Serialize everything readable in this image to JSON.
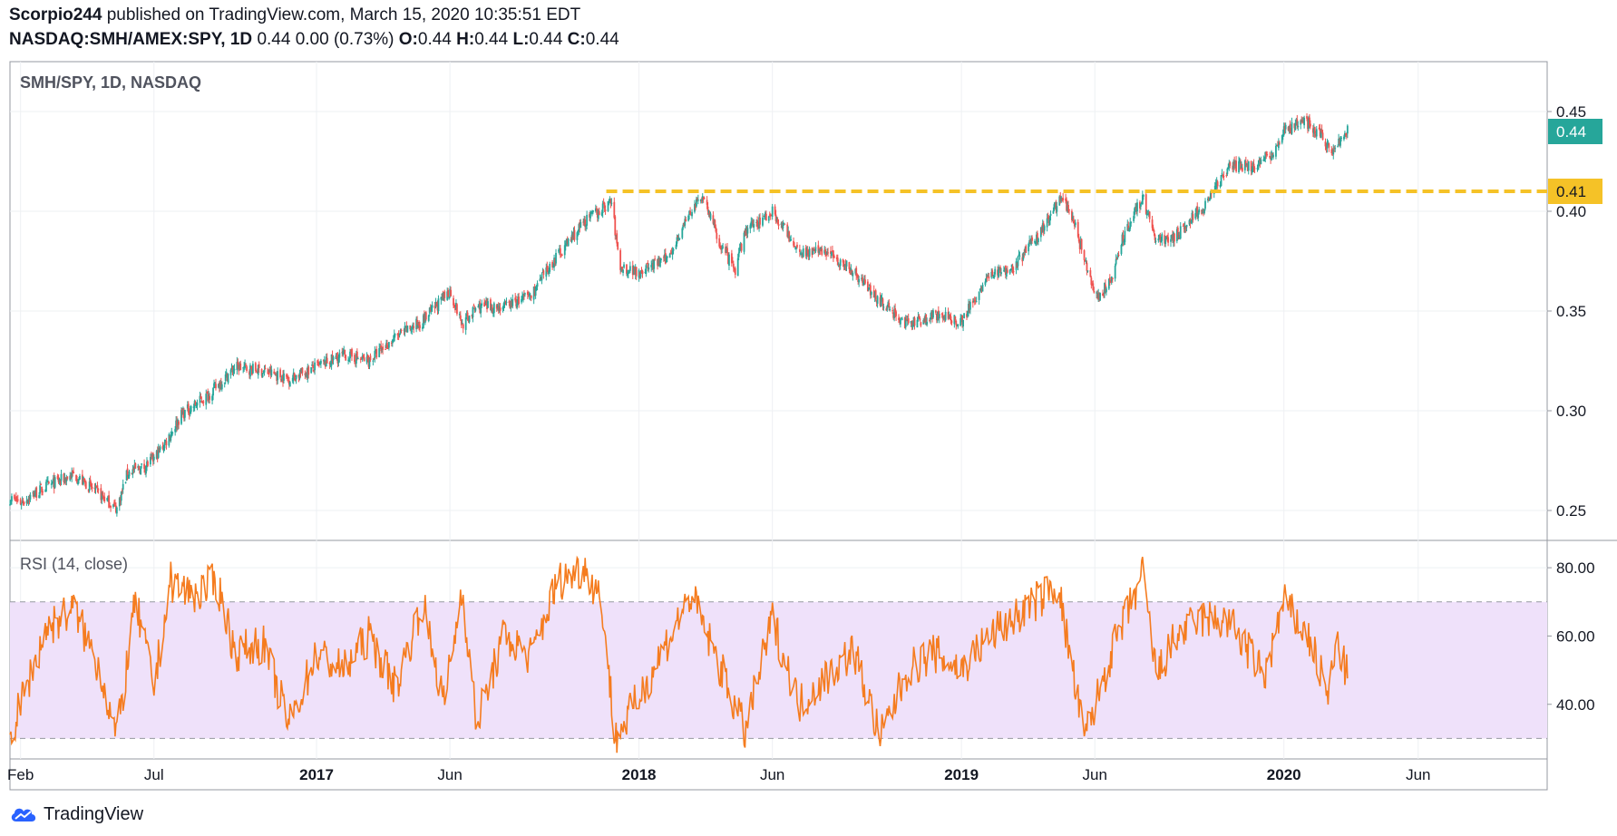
{
  "header": {
    "author": "Scorpio244",
    "published_text": " published on TradingView.com, March 15, 2020 10:35:51 EDT",
    "symbol_bold": "NASDAQ:SMH/AMEX:SPY, 1D",
    "price_rest": "0.44 0.00 (0.73%)",
    "o_label": "O:",
    "o_value": "0.44",
    "h_label": "H:",
    "h_value": "0.44",
    "l_label": "L:",
    "l_value": "0.44",
    "c_label": "C:",
    "c_value": "0.44"
  },
  "footer": {
    "brand": "TradingView"
  },
  "colors": {
    "up": "#26a69a",
    "down": "#ef5350",
    "rsi_line": "#f57c1f",
    "rsi_band": "#efe1fa",
    "hline": "#f5c227",
    "price_tag": "#26a69a"
  },
  "chart_data": [
    {
      "type": "candlestick",
      "title": "SMH/SPY, 1D, NASDAQ",
      "ylim": [
        0.235,
        0.475
      ],
      "y_ticks": [
        "0.45",
        "0.40",
        "0.35",
        "0.30",
        "0.25"
      ],
      "x_ticks": [
        "Feb",
        "Jul",
        "2017",
        "Jun",
        "2018",
        "Jun",
        "2019",
        "Jun",
        "2020",
        "Jun"
      ],
      "x_tick_dates": [
        "2016-02-01",
        "2016-07-01",
        "2017-01-01",
        "2017-06-01",
        "2018-01-01",
        "2018-06-01",
        "2019-01-01",
        "2019-06-01",
        "2020-01-01",
        "2020-06-01"
      ],
      "x_range": [
        "2016-01-20",
        "2020-10-25"
      ],
      "close_path": [
        [
          "2016-01-20",
          0.256
        ],
        [
          "2016-02-01",
          0.254
        ],
        [
          "2016-03-01",
          0.262
        ],
        [
          "2016-04-01",
          0.268
        ],
        [
          "2016-05-01",
          0.258
        ],
        [
          "2016-05-20",
          0.251
        ],
        [
          "2016-06-01",
          0.269
        ],
        [
          "2016-06-20",
          0.272
        ],
        [
          "2016-07-01",
          0.276
        ],
        [
          "2016-07-15",
          0.285
        ],
        [
          "2016-08-01",
          0.298
        ],
        [
          "2016-09-01",
          0.308
        ],
        [
          "2016-10-01",
          0.322
        ],
        [
          "2016-11-01",
          0.32
        ],
        [
          "2016-12-01",
          0.316
        ],
        [
          "2017-01-01",
          0.322
        ],
        [
          "2017-02-01",
          0.328
        ],
        [
          "2017-03-01",
          0.325
        ],
        [
          "2017-04-01",
          0.337
        ],
        [
          "2017-05-01",
          0.345
        ],
        [
          "2017-06-01",
          0.36
        ],
        [
          "2017-06-15",
          0.343
        ],
        [
          "2017-07-01",
          0.352
        ],
        [
          "2017-08-01",
          0.352
        ],
        [
          "2017-09-01",
          0.358
        ],
        [
          "2017-10-01",
          0.378
        ],
        [
          "2017-11-01",
          0.395
        ],
        [
          "2017-12-01",
          0.405
        ],
        [
          "2017-12-10",
          0.372
        ],
        [
          "2018-01-01",
          0.37
        ],
        [
          "2018-02-01",
          0.376
        ],
        [
          "2018-03-01",
          0.4
        ],
        [
          "2018-03-15",
          0.408
        ],
        [
          "2018-04-01",
          0.385
        ],
        [
          "2018-04-20",
          0.37
        ],
        [
          "2018-05-01",
          0.39
        ],
        [
          "2018-06-01",
          0.4
        ],
        [
          "2018-07-01",
          0.38
        ],
        [
          "2018-08-01",
          0.38
        ],
        [
          "2018-09-01",
          0.37
        ],
        [
          "2018-10-01",
          0.355
        ],
        [
          "2018-11-01",
          0.343
        ],
        [
          "2018-12-01",
          0.348
        ],
        [
          "2019-01-01",
          0.345
        ],
        [
          "2019-02-01",
          0.368
        ],
        [
          "2019-03-01",
          0.372
        ],
        [
          "2019-04-01",
          0.39
        ],
        [
          "2019-04-25",
          0.408
        ],
        [
          "2019-05-10",
          0.392
        ],
        [
          "2019-06-01",
          0.356
        ],
        [
          "2019-06-20",
          0.365
        ],
        [
          "2019-07-01",
          0.385
        ],
        [
          "2019-07-25",
          0.407
        ],
        [
          "2019-08-10",
          0.385
        ],
        [
          "2019-09-01",
          0.388
        ],
        [
          "2019-10-01",
          0.402
        ],
        [
          "2019-11-01",
          0.422
        ],
        [
          "2019-12-01",
          0.423
        ],
        [
          "2019-12-20",
          0.43
        ],
        [
          "2020-01-01",
          0.44
        ],
        [
          "2020-01-25",
          0.445
        ],
        [
          "2020-02-10",
          0.439
        ],
        [
          "2020-02-25",
          0.43
        ],
        [
          "2020-03-13",
          0.44
        ]
      ],
      "horizontal_line": {
        "value": 0.41,
        "label": "0.41",
        "from": "2017-11-25"
      },
      "last_price_label": "0.44",
      "last_price": 0.44,
      "grid": true
    },
    {
      "type": "line",
      "title": "RSI (14, close)",
      "ylim": [
        24,
        88
      ],
      "y_ticks": [
        "80.00",
        "60.00",
        "40.00"
      ],
      "band": [
        30,
        70
      ],
      "rsi_anchor_path": [
        [
          "2016-01-20",
          30
        ],
        [
          "2016-02-01",
          40
        ],
        [
          "2016-03-01",
          62
        ],
        [
          "2016-04-01",
          68
        ],
        [
          "2016-05-01",
          50
        ],
        [
          "2016-05-20",
          30
        ],
        [
          "2016-06-10",
          70
        ],
        [
          "2016-07-01",
          45
        ],
        [
          "2016-07-20",
          76
        ],
        [
          "2016-08-15",
          72
        ],
        [
          "2016-09-10",
          76
        ],
        [
          "2016-10-01",
          55
        ],
        [
          "2016-11-01",
          58
        ],
        [
          "2016-12-01",
          34
        ],
        [
          "2017-01-01",
          55
        ],
        [
          "2017-02-01",
          50
        ],
        [
          "2017-03-01",
          60
        ],
        [
          "2017-04-01",
          45
        ],
        [
          "2017-05-01",
          70
        ],
        [
          "2017-05-25",
          40
        ],
        [
          "2017-06-15",
          74
        ],
        [
          "2017-07-01",
          34
        ],
        [
          "2017-08-01",
          60
        ],
        [
          "2017-09-01",
          54
        ],
        [
          "2017-10-01",
          76
        ],
        [
          "2017-11-01",
          80
        ],
        [
          "2017-11-20",
          70
        ],
        [
          "2017-12-05",
          30
        ],
        [
          "2018-01-01",
          42
        ],
        [
          "2018-02-01",
          58
        ],
        [
          "2018-03-01",
          72
        ],
        [
          "2018-04-01",
          52
        ],
        [
          "2018-05-01",
          32
        ],
        [
          "2018-06-01",
          65
        ],
        [
          "2018-07-01",
          40
        ],
        [
          "2018-08-01",
          48
        ],
        [
          "2018-09-01",
          56
        ],
        [
          "2018-10-01",
          30
        ],
        [
          "2018-11-01",
          50
        ],
        [
          "2018-12-01",
          55
        ],
        [
          "2019-01-01",
          50
        ],
        [
          "2019-02-01",
          60
        ],
        [
          "2019-03-01",
          65
        ],
        [
          "2019-04-20",
          75
        ],
        [
          "2019-05-20",
          30
        ],
        [
          "2019-06-20",
          55
        ],
        [
          "2019-07-25",
          78
        ],
        [
          "2019-08-10",
          48
        ],
        [
          "2019-09-01",
          60
        ],
        [
          "2019-10-01",
          65
        ],
        [
          "2019-11-01",
          64
        ],
        [
          "2019-12-10",
          48
        ],
        [
          "2020-01-01",
          70
        ],
        [
          "2020-02-01",
          58
        ],
        [
          "2020-02-20",
          42
        ],
        [
          "2020-03-01",
          58
        ],
        [
          "2020-03-13",
          48
        ]
      ],
      "x_range": [
        "2016-01-20",
        "2020-10-25"
      ]
    }
  ]
}
